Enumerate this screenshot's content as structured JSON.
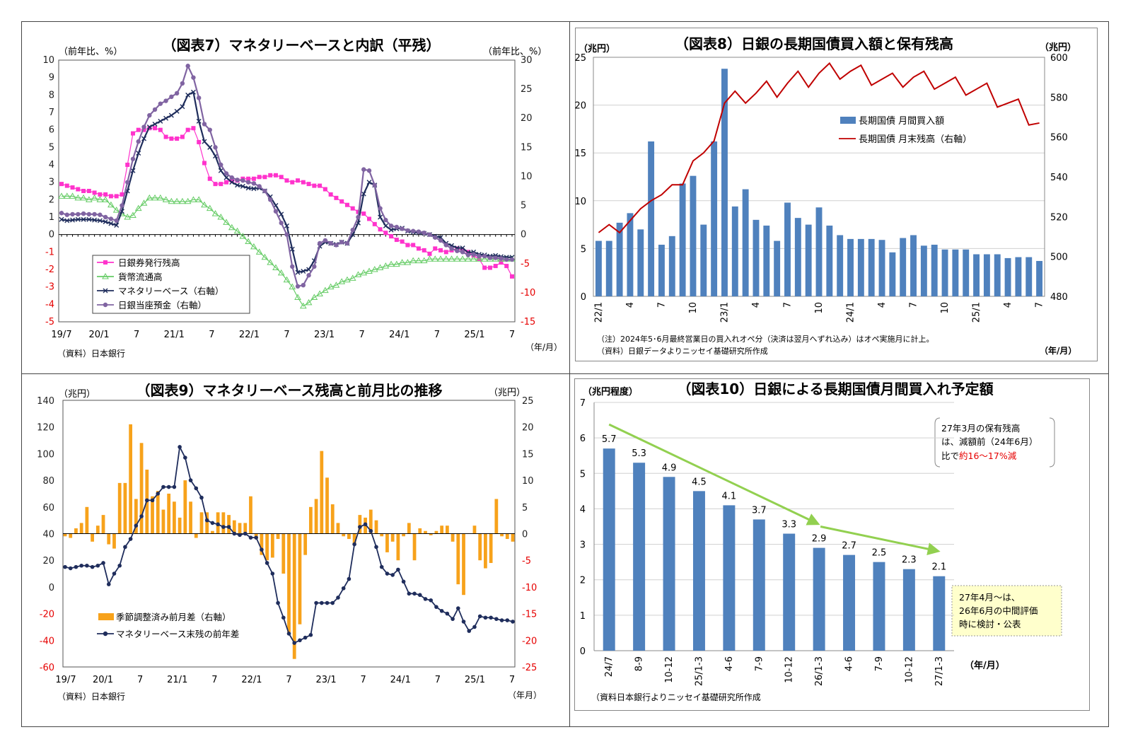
{
  "charts": {
    "c7": {
      "title": "（図表7）マネタリーベースと内訳（平残）",
      "left_unit": "（前年比、%）",
      "right_unit": "（前年比、%）",
      "source": "（資料）日本銀行",
      "x_unit": "（年/月）"
    },
    "c8": {
      "title": "（図表8）日銀の長期国債買入額と保有残高",
      "left_unit": "（兆円）",
      "right_unit": "（兆円）",
      "note1": "（注）2024年5･6月最終営業日の買入れオペ分（決済は翌月へずれ込み）はオペ実施月に計上。",
      "note2": "（資料）日銀データよりニッセイ基礎研究所作成",
      "x_unit": "（年/月）"
    },
    "c9": {
      "title": "（図表9）マネタリーベース残高と前月比の推移",
      "left_unit": "（兆円）",
      "right_unit": "（兆円）",
      "source": "（資料）日本銀行",
      "x_unit": "（年月）"
    },
    "c10": {
      "title": "（図表10）日銀による長期国債月間買入れ予定額",
      "left_unit": "（兆円程度）",
      "x_unit": "（年/月）",
      "source": "（資料日本銀行よりニッセイ基礎研究所作成",
      "callout1": [
        "27年3月の保有残高",
        "は、減額前（24年6月）"
      ],
      "callout1_prefix": "比で",
      "callout1_red": "約16～17%減",
      "callout2": [
        "27年4月～は、",
        "26年6月の中間評価",
        "時に検討・公表"
      ]
    }
  },
  "chart_data": [
    {
      "type": "line",
      "title": "（図表7）マネタリーベースと内訳（平残）",
      "x_tick_labels": [
        "19/7",
        "20/1",
        "7",
        "21/1",
        "7",
        "22/1",
        "7",
        "23/1",
        "7",
        "24/1",
        "7",
        "25/1",
        "7"
      ],
      "ylim_left": [
        -5,
        10
      ],
      "ylim_right": [
        -15,
        30
      ],
      "left_ticks": [
        -5,
        -4,
        -3,
        -2,
        -1,
        0,
        1,
        2,
        3,
        4,
        5,
        6,
        7,
        8,
        9,
        10
      ],
      "right_ticks": [
        -15,
        -10,
        -5,
        0,
        5,
        10,
        15,
        20,
        25,
        30
      ],
      "series": [
        {
          "name": "日銀券発行残高",
          "axis": "left",
          "color": "#ff33cc",
          "marker": "square",
          "values": [
            2.9,
            2.8,
            2.7,
            2.6,
            2.5,
            2.5,
            2.4,
            2.3,
            2.3,
            2.2,
            2.2,
            2.3,
            4.0,
            5.8,
            6.0,
            6.0,
            6.1,
            6.1,
            6.0,
            5.6,
            5.5,
            5.5,
            5.6,
            6.0,
            6.1,
            5.3,
            4.1,
            3.2,
            2.9,
            2.9,
            3.0,
            3.1,
            3.1,
            3.2,
            3.2,
            3.2,
            3.3,
            3.3,
            3.4,
            3.4,
            3.3,
            3.1,
            3.0,
            3.1,
            3.0,
            2.9,
            2.8,
            2.8,
            2.6,
            2.3,
            2.1,
            1.9,
            1.7,
            1.5,
            1.3,
            1.2,
            0.9,
            0.6,
            0.3,
            0.1,
            -0.1,
            -0.3,
            -0.4,
            -0.6,
            -0.6,
            -0.8,
            -0.9,
            -1.1,
            -0.8,
            -0.9,
            -1.0,
            -0.9,
            -0.8,
            -0.9,
            -1.0,
            -1.2,
            -1.4,
            -1.9,
            -1.9,
            -1.8,
            -1.6,
            -1.8,
            -2.4
          ]
        },
        {
          "name": "貨幣流通高",
          "axis": "left",
          "color": "#66cc66",
          "marker": "triangle",
          "values": [
            2.2,
            2.2,
            2.2,
            2.1,
            2.1,
            2.0,
            2.1,
            2.0,
            2.0,
            1.7,
            1.4,
            1.2,
            1.0,
            1.1,
            1.5,
            1.8,
            2.1,
            2.1,
            2.1,
            2.0,
            1.9,
            1.9,
            1.9,
            1.9,
            2.0,
            2.0,
            1.7,
            1.5,
            1.2,
            1.0,
            0.7,
            0.4,
            0.2,
            -0.1,
            -0.4,
            -0.7,
            -1.0,
            -1.3,
            -1.6,
            -1.9,
            -2.2,
            -2.6,
            -3.0,
            -3.6,
            -4.1,
            -3.9,
            -3.6,
            -3.4,
            -3.2,
            -3.0,
            -2.9,
            -2.7,
            -2.6,
            -2.5,
            -2.3,
            -2.2,
            -2.1,
            -2.0,
            -1.9,
            -1.8,
            -1.7,
            -1.7,
            -1.6,
            -1.6,
            -1.5,
            -1.5,
            -1.5,
            -1.4,
            -1.4,
            -1.4,
            -1.4,
            -1.4,
            -1.4,
            -1.4,
            -1.4,
            -1.4,
            -1.4,
            -1.4,
            -1.4,
            -1.4,
            -1.4,
            -1.4,
            -1.4
          ]
        },
        {
          "name": "マネタリーベース（右軸）",
          "axis": "right",
          "color": "#1f2d5c",
          "marker": "x",
          "values": [
            2.6,
            2.4,
            2.5,
            2.6,
            2.6,
            2.6,
            2.5,
            2.4,
            2.2,
            1.9,
            1.6,
            4.0,
            7.5,
            11.0,
            14.0,
            16.5,
            18.5,
            19.0,
            19.5,
            20.0,
            20.5,
            21.2,
            22.0,
            24.0,
            24.5,
            19.5,
            16.0,
            15.0,
            13.5,
            11.0,
            9.8,
            9.0,
            8.5,
            8.3,
            8.0,
            7.9,
            8.0,
            7.5,
            6.5,
            5.0,
            3.5,
            1.5,
            -2.5,
            -6.5,
            -6.3,
            -6.0,
            -4.5,
            -2.0,
            -1.3,
            -1.5,
            -1.7,
            -1.3,
            -1.5,
            0.0,
            2.0,
            7.0,
            9.0,
            8.5,
            3.0,
            1.5,
            0.8,
            1.0,
            1.1,
            0.6,
            0.4,
            0.3,
            0.2,
            0.0,
            -0.3,
            -0.5,
            -1.5,
            -1.9,
            -2.3,
            -2.3,
            -3.1,
            -3.0,
            -3.4,
            -3.5,
            -3.7,
            -3.6,
            -3.8,
            -3.9,
            -3.9
          ]
        },
        {
          "name": "日銀当座預金（右軸）",
          "axis": "right",
          "color": "#8064a2",
          "marker": "circle",
          "values": [
            3.7,
            3.4,
            3.5,
            3.5,
            3.6,
            3.5,
            3.5,
            3.4,
            3.0,
            2.7,
            2.4,
            5.0,
            9.0,
            13.0,
            16.0,
            18.5,
            20.5,
            21.5,
            22.5,
            23.0,
            23.7,
            24.3,
            26.0,
            29.0,
            27.0,
            23.5,
            19.0,
            18.0,
            15.0,
            12.0,
            10.5,
            9.8,
            9.4,
            9.3,
            9.0,
            8.8,
            8.3,
            7.5,
            6.0,
            4.0,
            2.0,
            0.0,
            -5.5,
            -8.9,
            -8.7,
            -7.0,
            -5.5,
            -1.5,
            -1.0,
            -1.5,
            -1.8,
            -1.3,
            -1.5,
            0.8,
            3.0,
            11.2,
            11.0,
            8.5,
            4.5,
            2.5,
            1.5,
            1.3,
            1.0,
            0.7,
            0.6,
            0.5,
            0.3,
            0.0,
            -0.5,
            -1.0,
            -1.8,
            -2.4,
            -2.8,
            -3.0,
            -3.5,
            -3.4,
            -3.7,
            -3.7,
            -4.0,
            -4.0,
            -4.1,
            -4.3,
            -4.3
          ]
        }
      ]
    },
    {
      "type": "bar",
      "title": "（図表8）日銀の長期国債買入額と保有残高",
      "x_tick_labels": [
        "22/1",
        "4",
        "7",
        "10",
        "23/1",
        "4",
        "7",
        "10",
        "24/1",
        "4",
        "7",
        "10",
        "25/1",
        "4",
        "7"
      ],
      "ylim_left": [
        0,
        25
      ],
      "ylim_right": [
        480,
        600
      ],
      "left_ticks": [
        0,
        5,
        10,
        15,
        20,
        25
      ],
      "right_ticks": [
        480,
        500,
        520,
        540,
        560,
        580,
        600
      ],
      "series": [
        {
          "name": "長期国債 月間買入額",
          "axis": "left",
          "type": "bar",
          "color": "#4f81bd",
          "values": [
            5.8,
            5.8,
            7.7,
            8.7,
            7.0,
            16.2,
            5.4,
            6.3,
            11.8,
            12.6,
            7.5,
            16.2,
            23.8,
            9.4,
            11.2,
            8.0,
            7.4,
            5.8,
            9.8,
            8.2,
            7.5,
            9.3,
            7.4,
            6.4,
            6.0,
            6.0,
            6.0,
            5.9,
            4.6,
            6.1,
            6.4,
            5.3,
            5.4,
            4.9,
            4.9,
            4.9,
            4.4,
            4.4,
            4.4,
            4.0,
            4.1,
            4.1,
            3.7
          ]
        },
        {
          "name": "長期国債 月末残高（右軸）",
          "axis": "right",
          "type": "line",
          "color": "#c00000",
          "values": [
            512,
            516,
            512,
            518,
            524,
            528,
            531,
            536,
            536,
            548,
            552,
            558,
            577,
            583,
            577,
            582,
            588,
            580,
            587,
            593,
            585,
            592,
            597,
            589,
            593,
            596,
            586,
            589,
            592,
            585,
            590,
            593,
            584,
            587,
            590,
            581,
            584,
            587,
            575,
            577,
            579,
            566,
            567
          ]
        }
      ]
    },
    {
      "type": "bar",
      "title": "（図表9）マネタリーベース残高と前月比の推移",
      "x_tick_labels": [
        "19/7",
        "20/1",
        "7",
        "21/1",
        "7",
        "22/1",
        "7",
        "23/1",
        "7",
        "24/1",
        "7",
        "25/1",
        "7"
      ],
      "ylim_left": [
        -60,
        140
      ],
      "ylim_right": [
        -25,
        25
      ],
      "left_ticks": [
        -60,
        -40,
        -20,
        0,
        20,
        40,
        60,
        80,
        100,
        120,
        140
      ],
      "right_ticks": [
        -25,
        -20,
        -15,
        -10,
        -5,
        0,
        5,
        10,
        15,
        20,
        25
      ],
      "series": [
        {
          "name": "季節調整済み前月差（右軸）",
          "axis": "right",
          "type": "bar",
          "color": "#f7a21b",
          "values": [
            -0.5,
            -0.8,
            1.0,
            2.0,
            5.0,
            -1.5,
            1.5,
            3.5,
            -2.0,
            -2.8,
            9.5,
            9.5,
            20.5,
            6.5,
            17.0,
            12.0,
            7.0,
            8.0,
            4.5,
            7.5,
            6.0,
            3.0,
            10.0,
            6.0,
            -0.8,
            4.0,
            4.0,
            0.5,
            4.0,
            4.0,
            3.5,
            2.5,
            2.0,
            2.0,
            7.0,
            -1.0,
            -4.0,
            -5.0,
            -4.5,
            -1.0,
            -7.5,
            -18.5,
            -23.5,
            -17.0,
            -4.0,
            5.0,
            6.5,
            15.5,
            10.5,
            5.5,
            2.0,
            -0.5,
            -1.0,
            -2.0,
            3.5,
            3.0,
            4.5,
            2.5,
            -0.5,
            -3.5,
            -1.5,
            -5.0,
            -0.5,
            2.0,
            -5.0,
            1.0,
            0.5,
            -0.3,
            0.5,
            1.5,
            1.5,
            -1.5,
            -9.5,
            -11.5,
            0.0,
            1.5,
            -5.0,
            -6.5,
            -5.5,
            6.5,
            -0.5,
            -1.0,
            -1.5
          ]
        },
        {
          "name": "マネタリーベース末残の前年差",
          "axis": "left",
          "type": "line",
          "color": "#1f2d5c",
          "values": [
            15,
            14,
            15,
            16,
            16,
            15,
            16,
            18,
            2,
            10,
            16,
            30,
            36,
            46,
            53,
            65,
            65,
            70,
            75,
            75,
            75,
            105,
            97,
            80,
            74,
            67,
            50,
            48,
            47,
            45,
            45,
            40,
            39,
            40,
            37,
            37,
            28,
            18,
            10,
            -12,
            -23,
            -35,
            -42,
            -40,
            -38,
            -36,
            -12,
            -12,
            -12,
            -12,
            -8,
            -1,
            6,
            32,
            45,
            47,
            42,
            30,
            15,
            10,
            9,
            13,
            4,
            -5,
            -5,
            -6,
            -9,
            -10,
            -15,
            -18,
            -20,
            -24,
            -16,
            -26,
            -33,
            -30,
            -22,
            -23,
            -23,
            -24,
            -25,
            -25,
            -26
          ]
        }
      ]
    },
    {
      "type": "bar",
      "title": "（図表10）日銀による長期国債月間買入れ予定額",
      "categories": [
        "24/7",
        "8-9",
        "10-12",
        "25/1-3",
        "4-6",
        "7-9",
        "10-12",
        "26/1-3",
        "4-6",
        "7-9",
        "10-12",
        "27/1-3"
      ],
      "values": [
        5.7,
        5.3,
        4.9,
        4.5,
        4.1,
        3.7,
        3.3,
        2.9,
        2.7,
        2.5,
        2.3,
        2.1
      ],
      "ylim": [
        0,
        7
      ],
      "left_ticks": [
        0,
        1,
        2,
        3,
        4,
        5,
        6,
        7
      ],
      "bar_color": "#4f81bd",
      "arrow_color": "#92d050"
    }
  ]
}
